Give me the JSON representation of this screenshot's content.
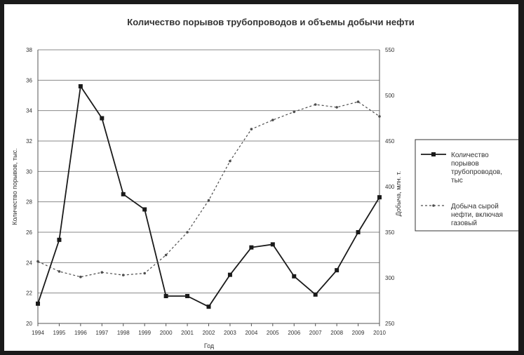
{
  "chart_data": {
    "type": "line",
    "title": "Количество порывов трубопроводов и объемы добычи нефти",
    "xlabel": "Год",
    "ylabel_left": "Количество порывов, тыс.",
    "ylabel_right": "Добыча, млн. т.",
    "x": [
      "1994",
      "1995",
      "1996",
      "1997",
      "1998",
      "1999",
      "2000",
      "2001",
      "2002",
      "2003",
      "2004",
      "2005",
      "2006",
      "2007",
      "2008",
      "2009",
      "2010"
    ],
    "ylim_left": [
      20,
      38
    ],
    "yticks_left": [
      "20",
      "22",
      "24",
      "26",
      "28",
      "30",
      "32",
      "34",
      "36",
      "38"
    ],
    "ylim_right": [
      250,
      550
    ],
    "yticks_right": [
      "250",
      "300",
      "350",
      "400",
      "450",
      "500",
      "550"
    ],
    "grid": true,
    "legend_position": "right",
    "series": [
      {
        "name": "Количество порывов трубопроводов, тыс",
        "axis": "left",
        "style": "solid",
        "color": "#1a1a1a",
        "values": [
          21.3,
          25.5,
          35.6,
          33.5,
          28.5,
          27.5,
          21.8,
          21.8,
          21.1,
          23.2,
          25.0,
          25.2,
          23.1,
          21.9,
          23.5,
          26.0,
          28.3
        ]
      },
      {
        "name": "Добыча сырой нефти, включая газовый",
        "axis": "right",
        "style": "dashed",
        "color": "#4d4d4d",
        "values": [
          318,
          307,
          301,
          306,
          303,
          305,
          325,
          350,
          385,
          428,
          463,
          473,
          482,
          490,
          487,
          493,
          477
        ]
      }
    ],
    "legend_lines": [
      [
        "Количество",
        "порывов",
        "трубопроводов,",
        "тыс"
      ],
      [
        "Добыча сырой",
        "нефти, включая",
        "газовый"
      ]
    ]
  }
}
